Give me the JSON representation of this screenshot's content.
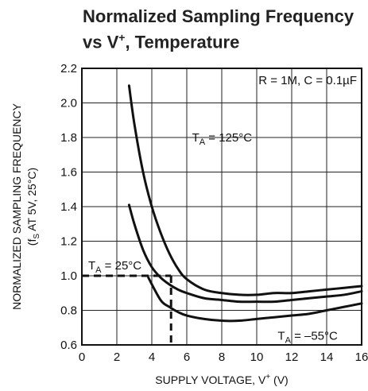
{
  "chart_data": {
    "type": "line",
    "title_line1": "Normalized Sampling Frequency",
    "title_line2_pre": "vs V",
    "title_line2_sup": "+",
    "title_line2_post": ", Temperature",
    "xlabel_pre": "SUPPLY VOLTAGE, V",
    "xlabel_sup": "+",
    "xlabel_post": " (V)",
    "ylabel_line1": "NORMALIZED SAMPLING FREQUENCY",
    "ylabel_line2_pre": "(f",
    "ylabel_line2_sub": "S",
    "ylabel_line2_post": " AT 5V, 25°C)",
    "xlim": [
      0,
      16
    ],
    "ylim": [
      0.6,
      2.2
    ],
    "grid": true,
    "x_ticks": [
      "0",
      "2",
      "4",
      "6",
      "8",
      "10",
      "12",
      "14",
      "16"
    ],
    "y_ticks": [
      "0.6",
      "0.8",
      "1.0",
      "1.2",
      "1.4",
      "1.6",
      "1.8",
      "2.0",
      "2.2"
    ],
    "condition_pre": "R = 1M, C = 0.1",
    "condition_mu": "µ",
    "condition_post": "F",
    "series": [
      {
        "name_pre": "T",
        "name_sub": "A",
        "name_post": " = 125°C",
        "x": [
          2.7,
          3.0,
          3.5,
          4.0,
          4.5,
          5.0,
          5.5,
          6.0,
          7.0,
          8.0,
          9.0,
          10.0,
          11.0,
          12.0,
          13.0,
          14.0,
          15.0,
          16.0
        ],
        "y": [
          2.1,
          1.88,
          1.6,
          1.4,
          1.25,
          1.13,
          1.04,
          0.98,
          0.92,
          0.9,
          0.89,
          0.89,
          0.9,
          0.9,
          0.91,
          0.92,
          0.93,
          0.94
        ]
      },
      {
        "name_pre": "",
        "name_sub": "",
        "name_post": "",
        "x": [
          2.7,
          3.0,
          3.5,
          4.0,
          4.5,
          5.0,
          5.5,
          6.0,
          7.0,
          8.0,
          9.0,
          10.0,
          11.0,
          12.0,
          13.0,
          14.0,
          15.0,
          16.0
        ],
        "y": [
          1.41,
          1.3,
          1.15,
          1.05,
          0.99,
          0.95,
          0.92,
          0.9,
          0.87,
          0.86,
          0.85,
          0.85,
          0.85,
          0.86,
          0.87,
          0.88,
          0.89,
          0.91
        ]
      },
      {
        "name_pre": "T",
        "name_sub": "A",
        "name_post": " = –55°C",
        "x": [
          3.8,
          4.5,
          5.0,
          5.5,
          6.0,
          7.0,
          8.0,
          9.0,
          10.0,
          11.0,
          12.0,
          13.0,
          14.0,
          15.0,
          16.0
        ],
        "y": [
          0.99,
          0.86,
          0.82,
          0.79,
          0.77,
          0.75,
          0.74,
          0.74,
          0.75,
          0.76,
          0.77,
          0.78,
          0.8,
          0.82,
          0.84
        ]
      }
    ],
    "reference": {
      "name_pre": "T",
      "name_sub": "A",
      "name_post": " = 25°C",
      "x": 5.1,
      "y": 1.0
    }
  }
}
